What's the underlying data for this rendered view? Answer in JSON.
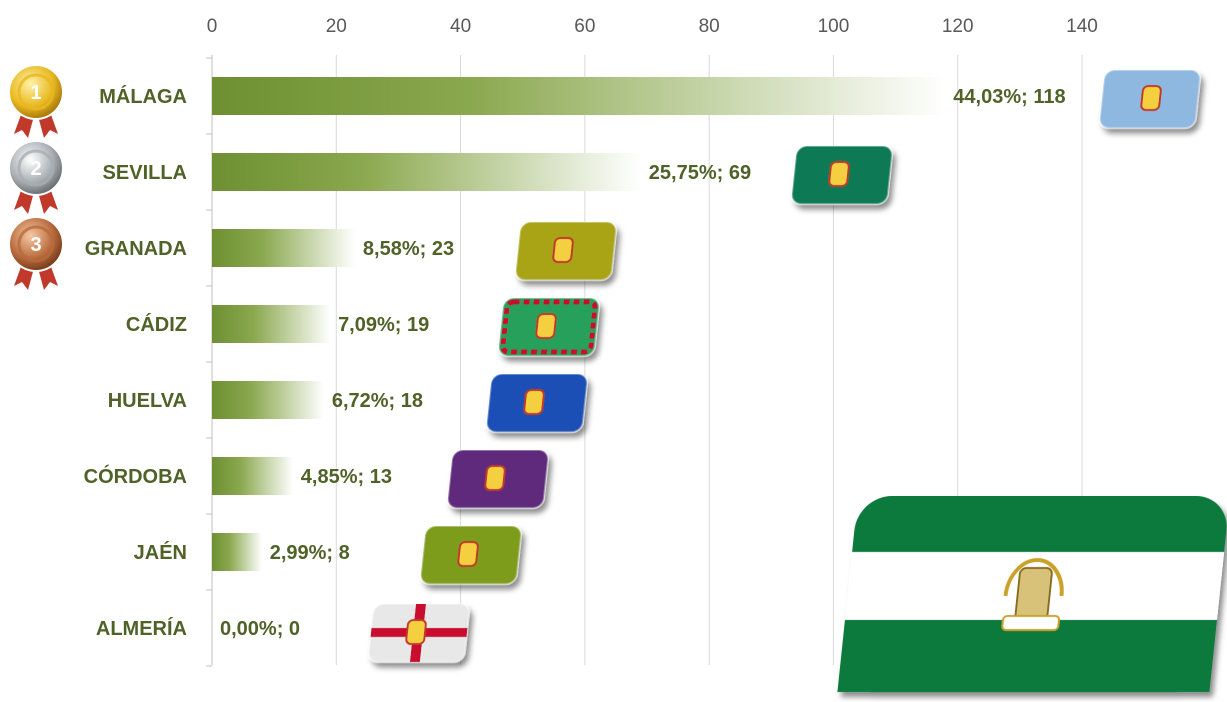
{
  "chart_data": {
    "type": "bar",
    "orientation": "horizontal",
    "categories": [
      "MÁLAGA",
      "SEVILLA",
      "GRANADA",
      "CÁDIZ",
      "HUELVA",
      "CÓRDOBA",
      "JAÉN",
      "ALMERÍA"
    ],
    "values": [
      118,
      69,
      23,
      19,
      18,
      13,
      8,
      0
    ],
    "percentages": [
      "44,03%",
      "25,75%",
      "8,58%",
      "7,09%",
      "6,72%",
      "4,85%",
      "2,99%",
      "0,00%"
    ],
    "data_labels": [
      "44,03%; 118",
      "25,75%; 69",
      "8,58%; 23",
      "7,09%; 19",
      "6,72%; 18",
      "4,85%; 13",
      "2,99%; 8",
      "0,00%; 0"
    ],
    "x_ticks": [
      "0",
      "20",
      "40",
      "60",
      "80",
      "100",
      "120",
      "140"
    ],
    "xlim": [
      0,
      140
    ],
    "axis_position": "top",
    "grid": true,
    "legend": "none",
    "bar_gradient": [
      "#6e8f32",
      "#ffffff"
    ],
    "label_color": "#4f6228",
    "medals": [
      {
        "rank": "1",
        "color": "#e8b820"
      },
      {
        "rank": "2",
        "color": "#a9aeb3"
      },
      {
        "rank": "3",
        "color": "#b86a3c"
      }
    ],
    "flags": [
      {
        "category": "MÁLAGA",
        "color": "#8fb8e0",
        "icon": "malaga-flag-icon"
      },
      {
        "category": "SEVILLA",
        "color": "#0f7a55",
        "icon": "sevilla-flag-icon"
      },
      {
        "category": "GRANADA",
        "color": "#a8a418",
        "icon": "granada-flag-icon"
      },
      {
        "category": "CÁDIZ",
        "color": "#25a05a",
        "icon": "cadiz-flag-icon"
      },
      {
        "category": "HUELVA",
        "color": "#1a4fb5",
        "icon": "huelva-flag-icon"
      },
      {
        "category": "CÓRDOBA",
        "color": "#5e2a7c",
        "icon": "cordoba-flag-icon"
      },
      {
        "category": "JAÉN",
        "color": "#7e9c1e",
        "icon": "jaen-flag-icon"
      },
      {
        "category": "ALMERÍA",
        "color": "#e8e8e8",
        "icon": "almeria-flag-icon"
      }
    ],
    "andalucia_flag": {
      "colors": [
        "#0b7a3c",
        "#ffffff",
        "#0b7a3c"
      ],
      "icon": "andalucia-flag-icon"
    }
  }
}
